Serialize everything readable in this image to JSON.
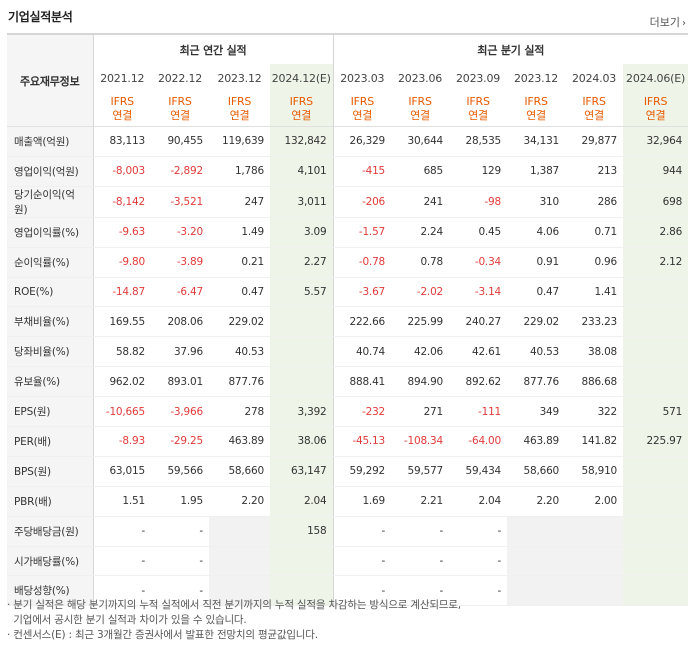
{
  "title": "기업실적분석",
  "more": "더보기",
  "header": {
    "row_label": "주요재무정보",
    "annual_label": "최근 연간 실적",
    "quarter_label": "최근 분기 실적",
    "periods": [
      "2021.12",
      "2022.12",
      "2023.12",
      "2024.12(E)",
      "2023.03",
      "2023.06",
      "2023.09",
      "2023.12",
      "2024.03",
      "2024.06(E)"
    ],
    "ifrs_top": "IFRS",
    "ifrs_bottom": "연결"
  },
  "rows": [
    {
      "label": "매출액(억원)",
      "values": [
        "83,113",
        "90,455",
        "119,639",
        "132,842",
        "26,329",
        "30,644",
        "28,535",
        "34,131",
        "29,877",
        "32,964"
      ]
    },
    {
      "label": "영업이익(억원)",
      "values": [
        "-8,003",
        "-2,892",
        "1,786",
        "4,101",
        "-415",
        "685",
        "129",
        "1,387",
        "213",
        "944"
      ]
    },
    {
      "label": "당기순이익(억원)",
      "values": [
        "-8,142",
        "-3,521",
        "247",
        "3,011",
        "-206",
        "241",
        "-98",
        "310",
        "286",
        "698"
      ]
    },
    {
      "label": "영업이익률(%)",
      "values": [
        "-9.63",
        "-3.20",
        "1.49",
        "3.09",
        "-1.57",
        "2.24",
        "0.45",
        "4.06",
        "0.71",
        "2.86"
      ]
    },
    {
      "label": "순이익률(%)",
      "values": [
        "-9.80",
        "-3.89",
        "0.21",
        "2.27",
        "-0.78",
        "0.78",
        "-0.34",
        "0.91",
        "0.96",
        "2.12"
      ]
    },
    {
      "label": "ROE(%)",
      "values": [
        "-14.87",
        "-6.47",
        "0.47",
        "5.57",
        "-3.67",
        "-2.02",
        "-3.14",
        "0.47",
        "1.41",
        ""
      ]
    },
    {
      "label": "부채비율(%)",
      "values": [
        "169.55",
        "208.06",
        "229.02",
        "",
        "222.66",
        "225.99",
        "240.27",
        "229.02",
        "233.23",
        ""
      ]
    },
    {
      "label": "당좌비율(%)",
      "values": [
        "58.82",
        "37.96",
        "40.53",
        "",
        "40.74",
        "42.06",
        "42.61",
        "40.53",
        "38.08",
        ""
      ]
    },
    {
      "label": "유보율(%)",
      "values": [
        "962.02",
        "893.01",
        "877.76",
        "",
        "888.41",
        "894.90",
        "892.62",
        "877.76",
        "886.68",
        ""
      ]
    },
    {
      "label": "EPS(원)",
      "values": [
        "-10,665",
        "-3,966",
        "278",
        "3,392",
        "-232",
        "271",
        "-111",
        "349",
        "322",
        "571"
      ]
    },
    {
      "label": "PER(배)",
      "values": [
        "-8.93",
        "-29.25",
        "463.89",
        "38.06",
        "-45.13",
        "-108.34",
        "-64.00",
        "463.89",
        "141.82",
        "225.97"
      ]
    },
    {
      "label": "BPS(원)",
      "values": [
        "63,015",
        "59,566",
        "58,660",
        "63,147",
        "59,292",
        "59,577",
        "59,434",
        "58,660",
        "58,910",
        ""
      ]
    },
    {
      "label": "PBR(배)",
      "values": [
        "1.51",
        "1.95",
        "2.20",
        "2.04",
        "1.69",
        "2.21",
        "2.04",
        "2.20",
        "2.00",
        ""
      ]
    },
    {
      "label": "주당배당금(원)",
      "values": [
        "-",
        "-",
        "",
        "158",
        "-",
        "-",
        "-",
        "",
        "",
        ""
      ]
    },
    {
      "label": "시가배당률(%)",
      "values": [
        "-",
        "-",
        "",
        "",
        "-",
        "-",
        "-",
        "",
        "",
        ""
      ]
    },
    {
      "label": "배당성향(%)",
      "values": [
        "-",
        "-",
        "",
        "",
        "-",
        "-",
        "-",
        "",
        "",
        ""
      ]
    }
  ],
  "notes": [
    "· 분기 실적은 해당 분기까지의 누적 실적에서 직전 분기까지의 누적 실적을 차감하는 방식으로 계산되므로,",
    "  기업에서 공시한 분기 실적과 차이가 있을 수 있습니다.",
    "· 컨센서스(E) : 최근 3개월간 증권사에서 발표한 전망치의 평균값입니다."
  ]
}
